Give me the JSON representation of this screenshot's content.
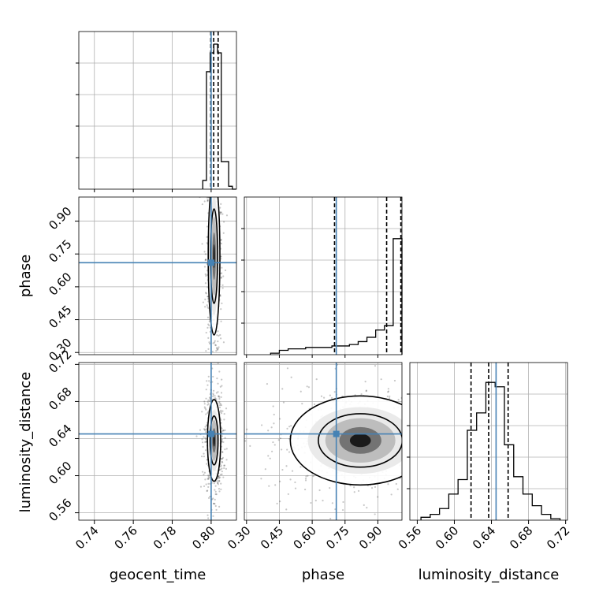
{
  "chart_data": {
    "type": "corner",
    "parameters": [
      "geocent_time",
      "phase",
      "luminosity_distance"
    ],
    "axis_labels": {
      "geocent_time": "geocent_time",
      "phase": "phase",
      "luminosity_distance": "luminosity_distance"
    },
    "truths": {
      "geocent_time": 0.8,
      "phase": 0.71,
      "luminosity_distance": 0.645
    },
    "truth_color": "#4682b4",
    "ranges": {
      "geocent_time": [
        0.732,
        0.813
      ],
      "phase": [
        0.29,
        1.01
      ],
      "luminosity_distance": [
        0.552,
        0.722
      ]
    },
    "ticks": {
      "geocent_time": [
        "0.74",
        "0.76",
        "0.78",
        "0.80"
      ],
      "phase": [
        "0.30",
        "0.45",
        "0.60",
        "0.75",
        "0.90"
      ],
      "luminosity_distance": [
        "0.56",
        "0.60",
        "0.64",
        "0.68",
        "0.72"
      ]
    },
    "grid": true,
    "histograms": {
      "geocent_time": {
        "edges": [
          0.7957,
          0.7976,
          0.7995,
          0.8014,
          0.8033,
          0.8052,
          0.8071,
          0.809,
          0.8109,
          0.8128
        ],
        "counts": [
          0.06,
          0.81,
          0.94,
          1.0,
          0.94,
          0.19,
          0.19,
          0.02,
          0.0
        ],
        "quantiles": [
          0.7998,
          0.8013,
          0.8036
        ],
        "truth": 0.8
      },
      "phase": {
        "edges": [
          0.41,
          0.45,
          0.49,
          0.53,
          0.57,
          0.61,
          0.65,
          0.69,
          0.73,
          0.77,
          0.81,
          0.85,
          0.89,
          0.93,
          0.97,
          1.01
        ],
        "counts": [
          0.01,
          0.03,
          0.04,
          0.04,
          0.05,
          0.05,
          0.05,
          0.06,
          0.06,
          0.07,
          0.09,
          0.12,
          0.17,
          0.2,
          0.8
        ],
        "quantiles": [
          0.702,
          0.94,
          1.005
        ],
        "truth": 0.71
      },
      "luminosity_distance": {
        "edges": [
          0.564,
          0.574,
          0.584,
          0.594,
          0.604,
          0.614,
          0.624,
          0.634,
          0.644,
          0.654,
          0.664,
          0.674,
          0.684,
          0.694,
          0.704,
          0.714
        ],
        "counts": [
          0.02,
          0.04,
          0.08,
          0.18,
          0.28,
          0.62,
          0.74,
          0.95,
          0.92,
          0.52,
          0.3,
          0.18,
          0.1,
          0.04,
          0.01
        ],
        "quantiles": [
          0.618,
          0.637,
          0.658
        ],
        "truth": 0.645
      }
    },
    "pair_panels": [
      {
        "x": "geocent_time",
        "y": "phase",
        "center": [
          0.8015,
          0.74
        ],
        "spread": [
          0.0015,
          0.18
        ]
      },
      {
        "x": "geocent_time",
        "y": "luminosity_distance",
        "center": [
          0.8015,
          0.638
        ],
        "spread": [
          0.0017,
          0.022
        ]
      },
      {
        "x": "phase",
        "y": "luminosity_distance",
        "center": [
          0.82,
          0.638
        ],
        "spread": [
          0.16,
          0.024
        ]
      }
    ]
  }
}
